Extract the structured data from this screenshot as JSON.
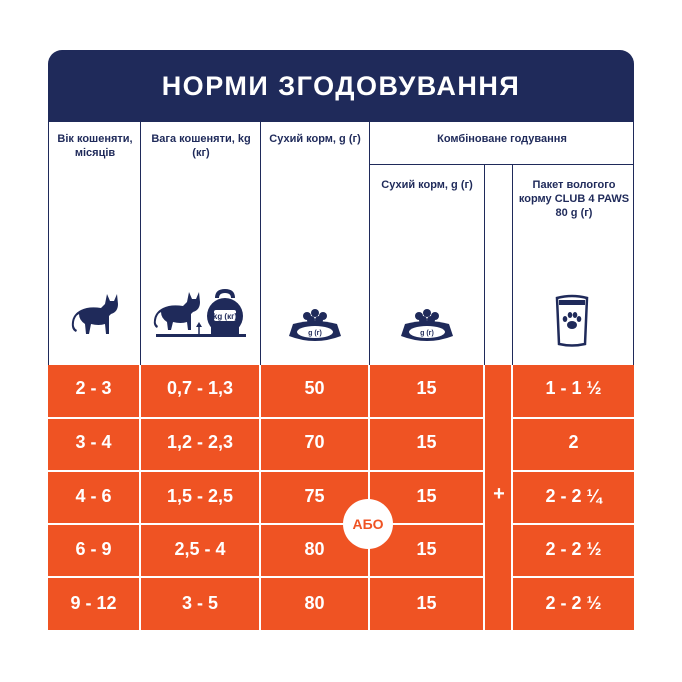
{
  "title": "НОРМИ ЗГОДОВУВАННЯ",
  "columns": {
    "age": "Вік кошеняти, місяців",
    "weight": "Вага кошеняти, kg (кг)",
    "dry": "Сухий корм, g (г)",
    "combined": "Комбіноване годування",
    "combined_dry": "Сухий корм, g (г)",
    "wet_pack": "Пакет вологого корму CLUB 4 PAWS 80 g (г)"
  },
  "icons": {
    "bowl_label": "g (г)",
    "kettlebell_label": "kg (кг)",
    "age_icon": "cat-icon",
    "weight_icon": "cat-scale-icon",
    "dry_icon": "food-bowl-icon",
    "pack_icon": "food-pouch-icon"
  },
  "rows": [
    {
      "age": "2 - 3",
      "weight": "0,7 - 1,3",
      "dry": "50",
      "combined_dry": "15",
      "wet": "1 - 1 ½"
    },
    {
      "age": "3 - 4",
      "weight": "1,2 - 2,3",
      "dry": "70",
      "combined_dry": "15",
      "wet": "2"
    },
    {
      "age": "4 - 6",
      "weight": "1,5 - 2,5",
      "dry": "75",
      "combined_dry": "15",
      "wet": "2 - 2 ¼"
    },
    {
      "age": "6 - 9",
      "weight": "2,5 - 4",
      "dry": "80",
      "combined_dry": "15",
      "wet": "2 - 2 ½"
    },
    {
      "age": "9 - 12",
      "weight": "3 - 5",
      "dry": "80",
      "combined_dry": "15",
      "wet": "2 - 2 ½"
    }
  ],
  "or_label": "АБО",
  "plus_label": "+",
  "colors": {
    "navy": "#1f2a5a",
    "orange": "#ef5323",
    "white": "#ffffff"
  }
}
